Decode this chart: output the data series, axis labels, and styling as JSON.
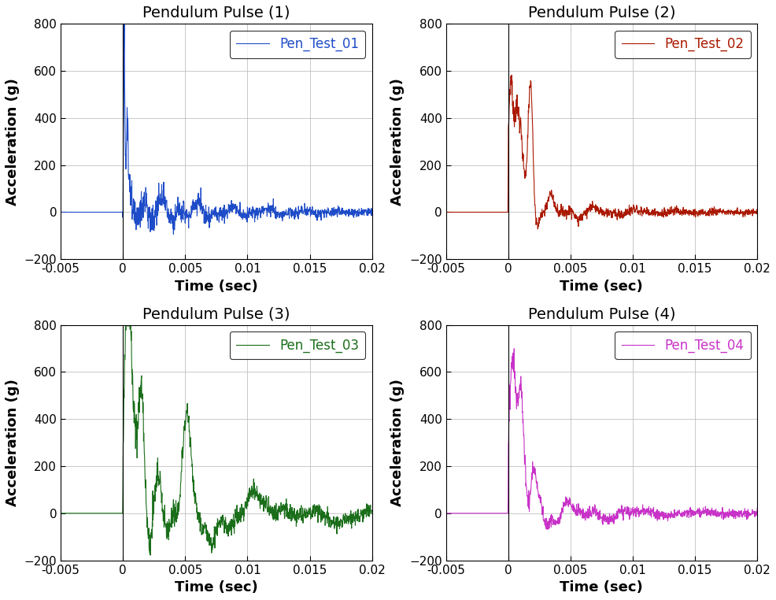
{
  "titles": [
    "Pendulum Pulse (1)",
    "Pendulum Pulse (2)",
    "Pendulum Pulse (3)",
    "Pendulum Pulse (4)"
  ],
  "labels": [
    "Pen_Test_01",
    "Pen_Test_02",
    "Pen_Test_03",
    "Pen_Test_04"
  ],
  "colors": [
    "#1E4CC8",
    "#AA1800",
    "#1A6E1A",
    "#C832C8"
  ],
  "xlim": [
    -0.005,
    0.02
  ],
  "ylim": [
    -200,
    800
  ],
  "xlabel": "Time (sec)",
  "ylabel": "Acceleration (g)",
  "yticks": [
    -200,
    0,
    200,
    400,
    600,
    800
  ],
  "xticks": [
    -0.005,
    0,
    0.005,
    0.01,
    0.015,
    0.02
  ],
  "title_fontsize": 14,
  "label_fontsize": 13,
  "tick_fontsize": 11,
  "legend_fontsize": 12,
  "line_width": 0.8,
  "background_color": "#ffffff",
  "grid_color": "#c0c0c0",
  "title_fontweight": "normal",
  "label_fontweight": "bold"
}
